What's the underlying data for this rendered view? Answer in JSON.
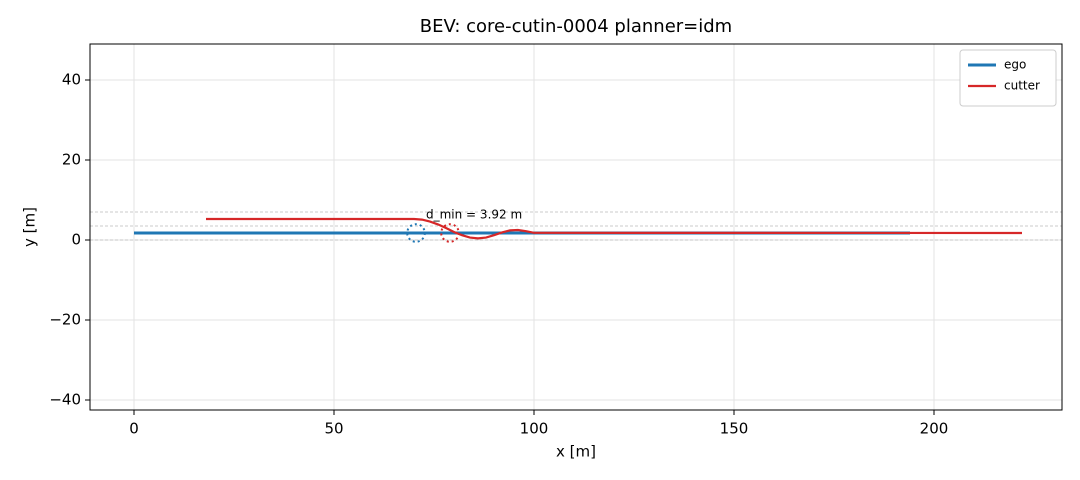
{
  "chart_data": {
    "type": "line",
    "title": "BEV: core-cutin-0004  planner=idm",
    "x_label": "x [m]",
    "y_label": "y [m]",
    "xlim": [
      -11,
      232
    ],
    "ylim": [
      -42.5,
      49
    ],
    "xticks": [
      0,
      50,
      100,
      150,
      200
    ],
    "yticks": [
      {
        "value": -40,
        "label": "−40"
      },
      {
        "value": -20,
        "label": "−20"
      },
      0,
      20,
      40
    ],
    "grid": true,
    "legend": "upper right",
    "lane_lines": [
      0,
      3.5,
      7
    ],
    "series": [
      {
        "name": "ego",
        "color": "#1f77b4",
        "x": [
          0,
          194
        ],
        "values": [
          1.75,
          1.75
        ]
      },
      {
        "name": "cutter",
        "color": "#d62728",
        "x": [
          18,
          70,
          72,
          74,
          76,
          78,
          80,
          82,
          84,
          86,
          88,
          90,
          92,
          94,
          96,
          98,
          100,
          222
        ],
        "values": [
          5.25,
          5.25,
          5.1,
          4.6,
          3.9,
          3.0,
          2.0,
          1.2,
          0.6,
          0.4,
          0.6,
          1.2,
          1.9,
          2.4,
          2.5,
          2.2,
          1.8,
          1.75
        ]
      }
    ],
    "circles": [
      {
        "x": 70.5,
        "y": 1.75,
        "r": 2.2,
        "color": "#1f77b4"
      },
      {
        "x": 79,
        "y": 1.75,
        "r": 2.2,
        "color": "#d62728"
      }
    ],
    "annotation": {
      "text": "d_min = 3.92 m",
      "x": 73,
      "y": 6.2
    }
  }
}
